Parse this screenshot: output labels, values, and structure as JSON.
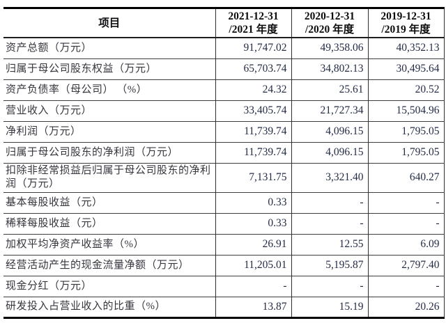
{
  "colors": {
    "page_background": "#ffffff",
    "heavy_border": "#000000",
    "thin_rule": "#3c3c3c",
    "label_text": "#36363e",
    "number_text": "#242c46",
    "header_text": "#0d0d10"
  },
  "table": {
    "header": {
      "item_label": "项目",
      "periods": [
        {
          "line1": "2021-12-31",
          "line2": "/2021 年度"
        },
        {
          "line1": "2020-12-31",
          "line2": "/2020 年度"
        },
        {
          "line1": "2019-12-31",
          "line2": "/2019 年度"
        }
      ]
    },
    "rows": [
      {
        "label": "资产总额（万元）",
        "values": [
          "91,747.02",
          "49,358.06",
          "40,352.13"
        ]
      },
      {
        "label": "归属于母公司股东权益（万元）",
        "values": [
          "65,703.74",
          "34,802.13",
          "30,495.64"
        ]
      },
      {
        "label": "资产负债率（母公司） （%）",
        "values": [
          "24.32",
          "25.61",
          "20.52"
        ]
      },
      {
        "label": "营业收入（万元）",
        "values": [
          "33,405.74",
          "21,727.34",
          "15,504.96"
        ]
      },
      {
        "label": "净利润（万元）",
        "values": [
          "11,739.74",
          "4,096.15",
          "1,795.05"
        ]
      },
      {
        "label": "归属于母公司股东的净利润（万元）",
        "values": [
          "11,739.74",
          "4,096.15",
          "1,795.05"
        ]
      },
      {
        "label": "扣除非经常损益后归属于母公司股东的净利润（万元）",
        "values": [
          "7,131.75",
          "3,321.40",
          "640.27"
        ]
      },
      {
        "label": "基本每股收益（元）",
        "values": [
          "0.33",
          "-",
          "-"
        ]
      },
      {
        "label": "稀释每股收益（元）",
        "values": [
          "0.33",
          "-",
          "-"
        ]
      },
      {
        "label": "加权平均净资产收益率（%）",
        "values": [
          "26.91",
          "12.55",
          "6.09"
        ]
      },
      {
        "label": "经营活动产生的现金流量净额（万元）",
        "values": [
          "11,205.01",
          "5,195.87",
          "2,797.40"
        ]
      },
      {
        "label": "现金分红（万元）",
        "values": [
          "-",
          "-",
          "-"
        ]
      },
      {
        "label": "研发投入占营业收入的比重（%）",
        "values": [
          "13.87",
          "15.19",
          "20.26"
        ]
      }
    ]
  }
}
